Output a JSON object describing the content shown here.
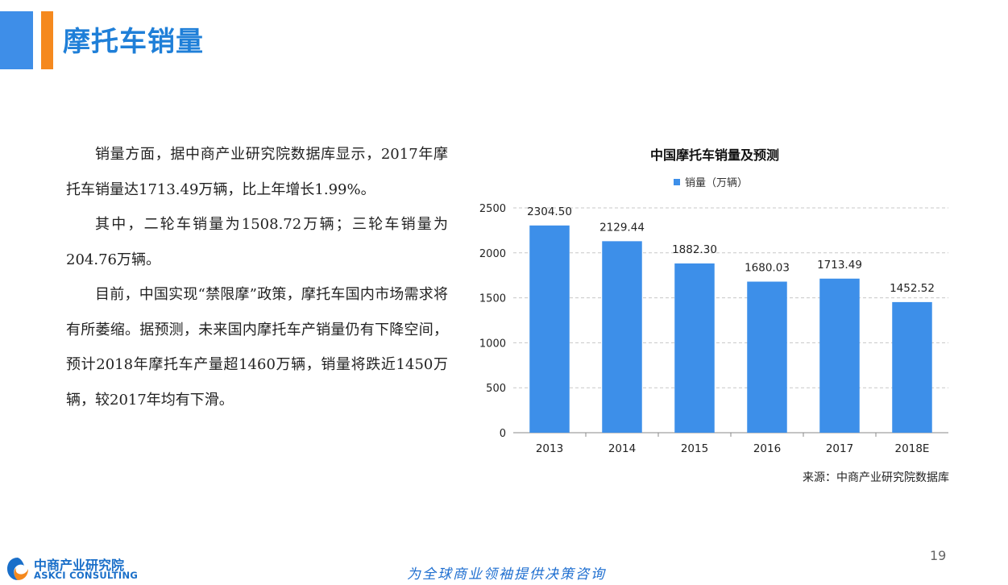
{
  "header": {
    "title": "摩托车销量",
    "accent_colors": [
      "#3e8ee8",
      "#f5891e"
    ]
  },
  "body": {
    "paragraphs": [
      "销量方面，据中商产业研究院数据库显示，2017年摩托车销量达1713.49万辆，比上年增长1.99%。",
      "其中，二轮车销量为1508.72万辆；三轮车销量为204.76万辆。",
      "目前，中国实现“禁限摩”政策，摩托车国内市场需求将有所萎缩。据预测，未来国内摩托车产销量仍有下降空间，预计2018年摩托车产量超1460万辆，销量将跌近1450万辆，较2017年均有下滑。"
    ]
  },
  "chart_data": {
    "type": "bar",
    "title": "中国摩托车销量及预测",
    "categories": [
      "2013",
      "2014",
      "2015",
      "2016",
      "2017",
      "2018E"
    ],
    "series": [
      {
        "name": "销量（万辆）",
        "values": [
          2304.5,
          2129.44,
          1882.3,
          1680.03,
          1713.49,
          1452.52
        ],
        "data_labels": [
          "2304.50",
          "2129.44",
          "1882.30",
          "1680.03",
          "1713.49",
          "1452.52"
        ],
        "color": "#3d8fe9"
      }
    ],
    "yticks": [
      "0",
      "500",
      "1000",
      "1500",
      "2000",
      "2500"
    ],
    "ylim": [
      0,
      2500
    ],
    "grid": true,
    "legend_position": "top"
  },
  "source": "来源：中商产业研究院数据库",
  "footer": {
    "logo_cn": "中商产业研究院",
    "logo_en": "ASKCI CONSULTING",
    "slogan": "为全球商业领袖提供决策咨询",
    "page_number": "19"
  }
}
